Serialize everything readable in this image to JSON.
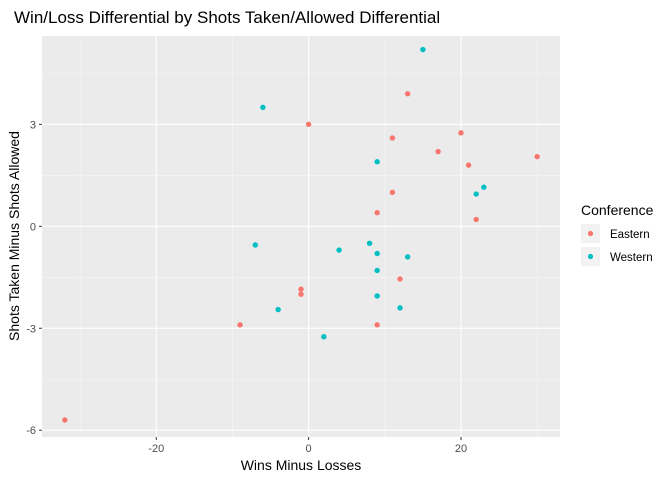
{
  "chart_data": {
    "type": "scatter",
    "title": "Win/Loss Differential by Shots Taken/Allowed Differential",
    "xlabel": "Wins Minus Losses",
    "ylabel": "Shots Taken Minus Shots Allowed",
    "xlim": [
      -35,
      33
    ],
    "ylim": [
      -6.2,
      5.6
    ],
    "xticks": [
      -20,
      0,
      20
    ],
    "yticks": [
      -6,
      -3,
      0,
      3
    ],
    "grid": true,
    "legend": {
      "title": "Conference",
      "placement": "right"
    },
    "series": [
      {
        "name": "Eastern",
        "color": "#F8766D",
        "points": [
          [
            -32,
            -5.7
          ],
          [
            -9,
            -2.9
          ],
          [
            -1,
            -1.85
          ],
          [
            -1,
            -2.0
          ],
          [
            0,
            3.0
          ],
          [
            9,
            0.4
          ],
          [
            9,
            -2.9
          ],
          [
            11,
            2.6
          ],
          [
            11,
            1.0
          ],
          [
            12,
            -1.55
          ],
          [
            13,
            3.9
          ],
          [
            17,
            2.2
          ],
          [
            20,
            2.75
          ],
          [
            21,
            1.8
          ],
          [
            22,
            0.2
          ],
          [
            30,
            2.05
          ]
        ]
      },
      {
        "name": "Western",
        "color": "#00BFC4",
        "points": [
          [
            -7,
            -0.55
          ],
          [
            -6,
            3.5
          ],
          [
            -4,
            -2.45
          ],
          [
            2,
            -3.25
          ],
          [
            4,
            -0.7
          ],
          [
            8,
            -0.5
          ],
          [
            9,
            1.9
          ],
          [
            9,
            -0.8
          ],
          [
            9,
            -1.3
          ],
          [
            9,
            -2.05
          ],
          [
            12,
            -2.4
          ],
          [
            13,
            -0.9
          ],
          [
            15,
            5.2
          ],
          [
            22,
            0.95
          ],
          [
            23,
            1.15
          ]
        ]
      }
    ]
  }
}
